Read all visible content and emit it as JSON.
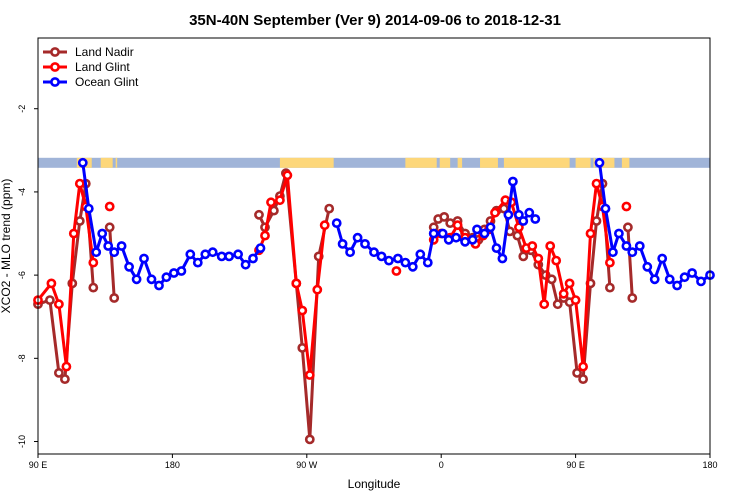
{
  "chart_data": {
    "type": "line",
    "title": "35N-40N September (Ver 9)   2014-09-06 to 2018-12-31",
    "xlabel": "Longitude",
    "ylabel": "XCO2 - MLO trend (ppm)",
    "xlim": [
      90,
      540
    ],
    "ylim": [
      -10.3,
      -0.3
    ],
    "x_ticks": [
      {
        "value": 90,
        "label": "90 E"
      },
      {
        "value": 180,
        "label": "180"
      },
      {
        "value": 270,
        "label": "90 W"
      },
      {
        "value": 360,
        "label": "0"
      },
      {
        "value": 450,
        "label": "90 E"
      },
      {
        "value": 540,
        "label": "180"
      }
    ],
    "y_ticks": [
      {
        "value": -10,
        "label": "-10"
      },
      {
        "value": -8,
        "label": "-8"
      },
      {
        "value": -6,
        "label": "-6"
      },
      {
        "value": -4,
        "label": "-4"
      },
      {
        "value": -2,
        "label": "-2"
      }
    ],
    "legend": {
      "position": "top-left"
    },
    "series": [
      {
        "name": "Land Nadir",
        "color": "#a52a2a",
        "segments": [
          [
            [
              90,
              -6.7
            ],
            [
              98,
              -6.6
            ],
            [
              104,
              -8.35
            ],
            [
              108,
              -8.5
            ],
            [
              113,
              -6.2
            ],
            [
              118,
              -4.7
            ],
            [
              122,
              -3.8
            ],
            [
              127,
              -6.3
            ]
          ],
          [
            [
              138,
              -4.85
            ],
            [
              141,
              -6.55
            ]
          ],
          [
            [
              238,
              -4.55
            ],
            [
              242,
              -4.85
            ],
            [
              248,
              -4.45
            ],
            [
              252,
              -4.1
            ],
            [
              256,
              -3.55
            ],
            [
              263,
              -6.2
            ],
            [
              267,
              -7.75
            ],
            [
              272,
              -9.95
            ],
            [
              278,
              -5.55
            ],
            [
              285,
              -4.4
            ]
          ],
          [
            [
              355,
              -4.85
            ],
            [
              358,
              -4.65
            ],
            [
              362,
              -4.6
            ],
            [
              366,
              -4.75
            ],
            [
              371,
              -4.7
            ],
            [
              376,
              -5.0
            ],
            [
              381,
              -5.1
            ],
            [
              385,
              -5.15
            ],
            [
              389,
              -4.9
            ],
            [
              393,
              -4.7
            ],
            [
              397,
              -4.45
            ],
            [
              402,
              -4.4
            ],
            [
              406,
              -4.95
            ],
            [
              411,
              -5.05
            ],
            [
              415,
              -5.55
            ],
            [
              420,
              -5.4
            ],
            [
              425,
              -5.75
            ],
            [
              430,
              -6.0
            ],
            [
              434,
              -6.1
            ],
            [
              438,
              -6.7
            ],
            [
              442,
              -6.55
            ],
            [
              446,
              -6.65
            ],
            [
              451,
              -8.35
            ],
            [
              455,
              -8.5
            ],
            [
              460,
              -6.2
            ],
            [
              464,
              -4.7
            ],
            [
              468,
              -3.8
            ],
            [
              473,
              -6.3
            ]
          ],
          [
            [
              485,
              -4.85
            ],
            [
              488,
              -6.55
            ]
          ]
        ]
      },
      {
        "name": "Land Glint",
        "color": "#ff0000",
        "segments": [
          [
            [
              90,
              -6.6
            ],
            [
              99,
              -6.2
            ],
            [
              104,
              -6.7
            ],
            [
              109,
              -8.2
            ],
            [
              114,
              -5.0
            ],
            [
              118,
              -3.8
            ],
            [
              122,
              -4.35
            ],
            [
              127,
              -5.7
            ]
          ],
          [
            [
              138,
              -4.35
            ]
          ],
          [
            [
              238,
              -5.4
            ],
            [
              242,
              -5.05
            ],
            [
              246,
              -4.25
            ],
            [
              252,
              -4.2
            ],
            [
              257,
              -3.6
            ],
            [
              263,
              -6.2
            ],
            [
              267,
              -6.85
            ],
            [
              272,
              -8.4
            ],
            [
              277,
              -6.35
            ],
            [
              282,
              -4.8
            ]
          ],
          [
            [
              330,
              -5.9
            ]
          ],
          [
            [
              355,
              -5.15
            ],
            [
              360,
              -5.0
            ],
            [
              366,
              -5.1
            ],
            [
              371,
              -4.8
            ],
            [
              376,
              -5.1
            ],
            [
              383,
              -5.25
            ],
            [
              388,
              -5.05
            ],
            [
              392,
              -4.9
            ],
            [
              396,
              -4.5
            ],
            [
              403,
              -4.2
            ],
            [
              407,
              -4.25
            ],
            [
              412,
              -4.85
            ],
            [
              417,
              -5.35
            ],
            [
              421,
              -5.3
            ],
            [
              425,
              -5.6
            ],
            [
              429,
              -6.7
            ],
            [
              433,
              -5.3
            ],
            [
              437,
              -5.65
            ],
            [
              442,
              -6.45
            ],
            [
              446,
              -6.2
            ],
            [
              450,
              -6.6
            ],
            [
              455,
              -8.2
            ],
            [
              460,
              -5.0
            ],
            [
              464,
              -3.8
            ],
            [
              468,
              -4.35
            ],
            [
              473,
              -5.7
            ]
          ],
          [
            [
              484,
              -4.35
            ]
          ]
        ]
      },
      {
        "name": "Ocean Glint",
        "color": "#0000ff",
        "segments": [
          [
            [
              120,
              -3.3
            ],
            [
              124,
              -4.4
            ],
            [
              129,
              -5.45
            ],
            [
              133,
              -5.0
            ],
            [
              137,
              -5.3
            ],
            [
              141,
              -5.45
            ],
            [
              146,
              -5.3
            ],
            [
              151,
              -5.8
            ],
            [
              156,
              -6.1
            ],
            [
              161,
              -5.6
            ],
            [
              166,
              -6.1
            ],
            [
              171,
              -6.25
            ],
            [
              176,
              -6.05
            ],
            [
              181,
              -5.95
            ],
            [
              186,
              -5.9
            ],
            [
              192,
              -5.5
            ],
            [
              197,
              -5.7
            ],
            [
              202,
              -5.5
            ],
            [
              207,
              -5.45
            ],
            [
              213,
              -5.55
            ],
            [
              218,
              -5.55
            ],
            [
              224,
              -5.5
            ],
            [
              229,
              -5.75
            ],
            [
              234,
              -5.6
            ],
            [
              239,
              -5.35
            ]
          ],
          [
            [
              290,
              -4.75
            ],
            [
              294,
              -5.25
            ],
            [
              299,
              -5.45
            ],
            [
              304,
              -5.1
            ],
            [
              309,
              -5.25
            ],
            [
              315,
              -5.45
            ],
            [
              320,
              -5.55
            ],
            [
              325,
              -5.65
            ],
            [
              331,
              -5.6
            ],
            [
              336,
              -5.7
            ],
            [
              341,
              -5.8
            ],
            [
              346,
              -5.5
            ],
            [
              351,
              -5.7
            ],
            [
              355,
              -5.0
            ],
            [
              361,
              -5.0
            ],
            [
              365,
              -5.15
            ],
            [
              370,
              -5.1
            ],
            [
              376,
              -5.2
            ],
            [
              381,
              -5.15
            ],
            [
              384,
              -4.9
            ],
            [
              389,
              -5.0
            ],
            [
              393,
              -4.85
            ],
            [
              397,
              -5.35
            ],
            [
              401,
              -5.6
            ],
            [
              405,
              -4.55
            ],
            [
              408,
              -3.75
            ],
            [
              412,
              -4.55
            ],
            [
              415,
              -4.7
            ],
            [
              419,
              -4.5
            ],
            [
              423,
              -4.65
            ]
          ],
          [
            [
              466,
              -3.3
            ],
            [
              470,
              -4.4
            ],
            [
              475,
              -5.45
            ],
            [
              479,
              -5.0
            ],
            [
              484,
              -5.3
            ],
            [
              488,
              -5.45
            ],
            [
              493,
              -5.3
            ],
            [
              498,
              -5.8
            ],
            [
              503,
              -6.1
            ],
            [
              508,
              -5.6
            ],
            [
              513,
              -6.1
            ],
            [
              518,
              -6.25
            ],
            [
              523,
              -6.05
            ],
            [
              528,
              -5.95
            ],
            [
              534,
              -6.15
            ],
            [
              540,
              -6.0
            ]
          ]
        ]
      }
    ],
    "landmask": {
      "y_value": -3.3,
      "ocean_color": "#a0b4d8",
      "land_color": "#fdd77a",
      "land_ranges": [
        [
          116,
          126
        ],
        [
          132,
          140
        ],
        [
          142,
          143
        ],
        [
          252,
          288
        ],
        [
          336,
          357
        ],
        [
          359,
          366
        ],
        [
          371,
          374
        ],
        [
          386,
          398
        ],
        [
          402,
          446
        ],
        [
          450,
          460
        ],
        [
          462,
          463
        ],
        [
          467,
          476
        ],
        [
          481,
          486
        ]
      ]
    }
  }
}
